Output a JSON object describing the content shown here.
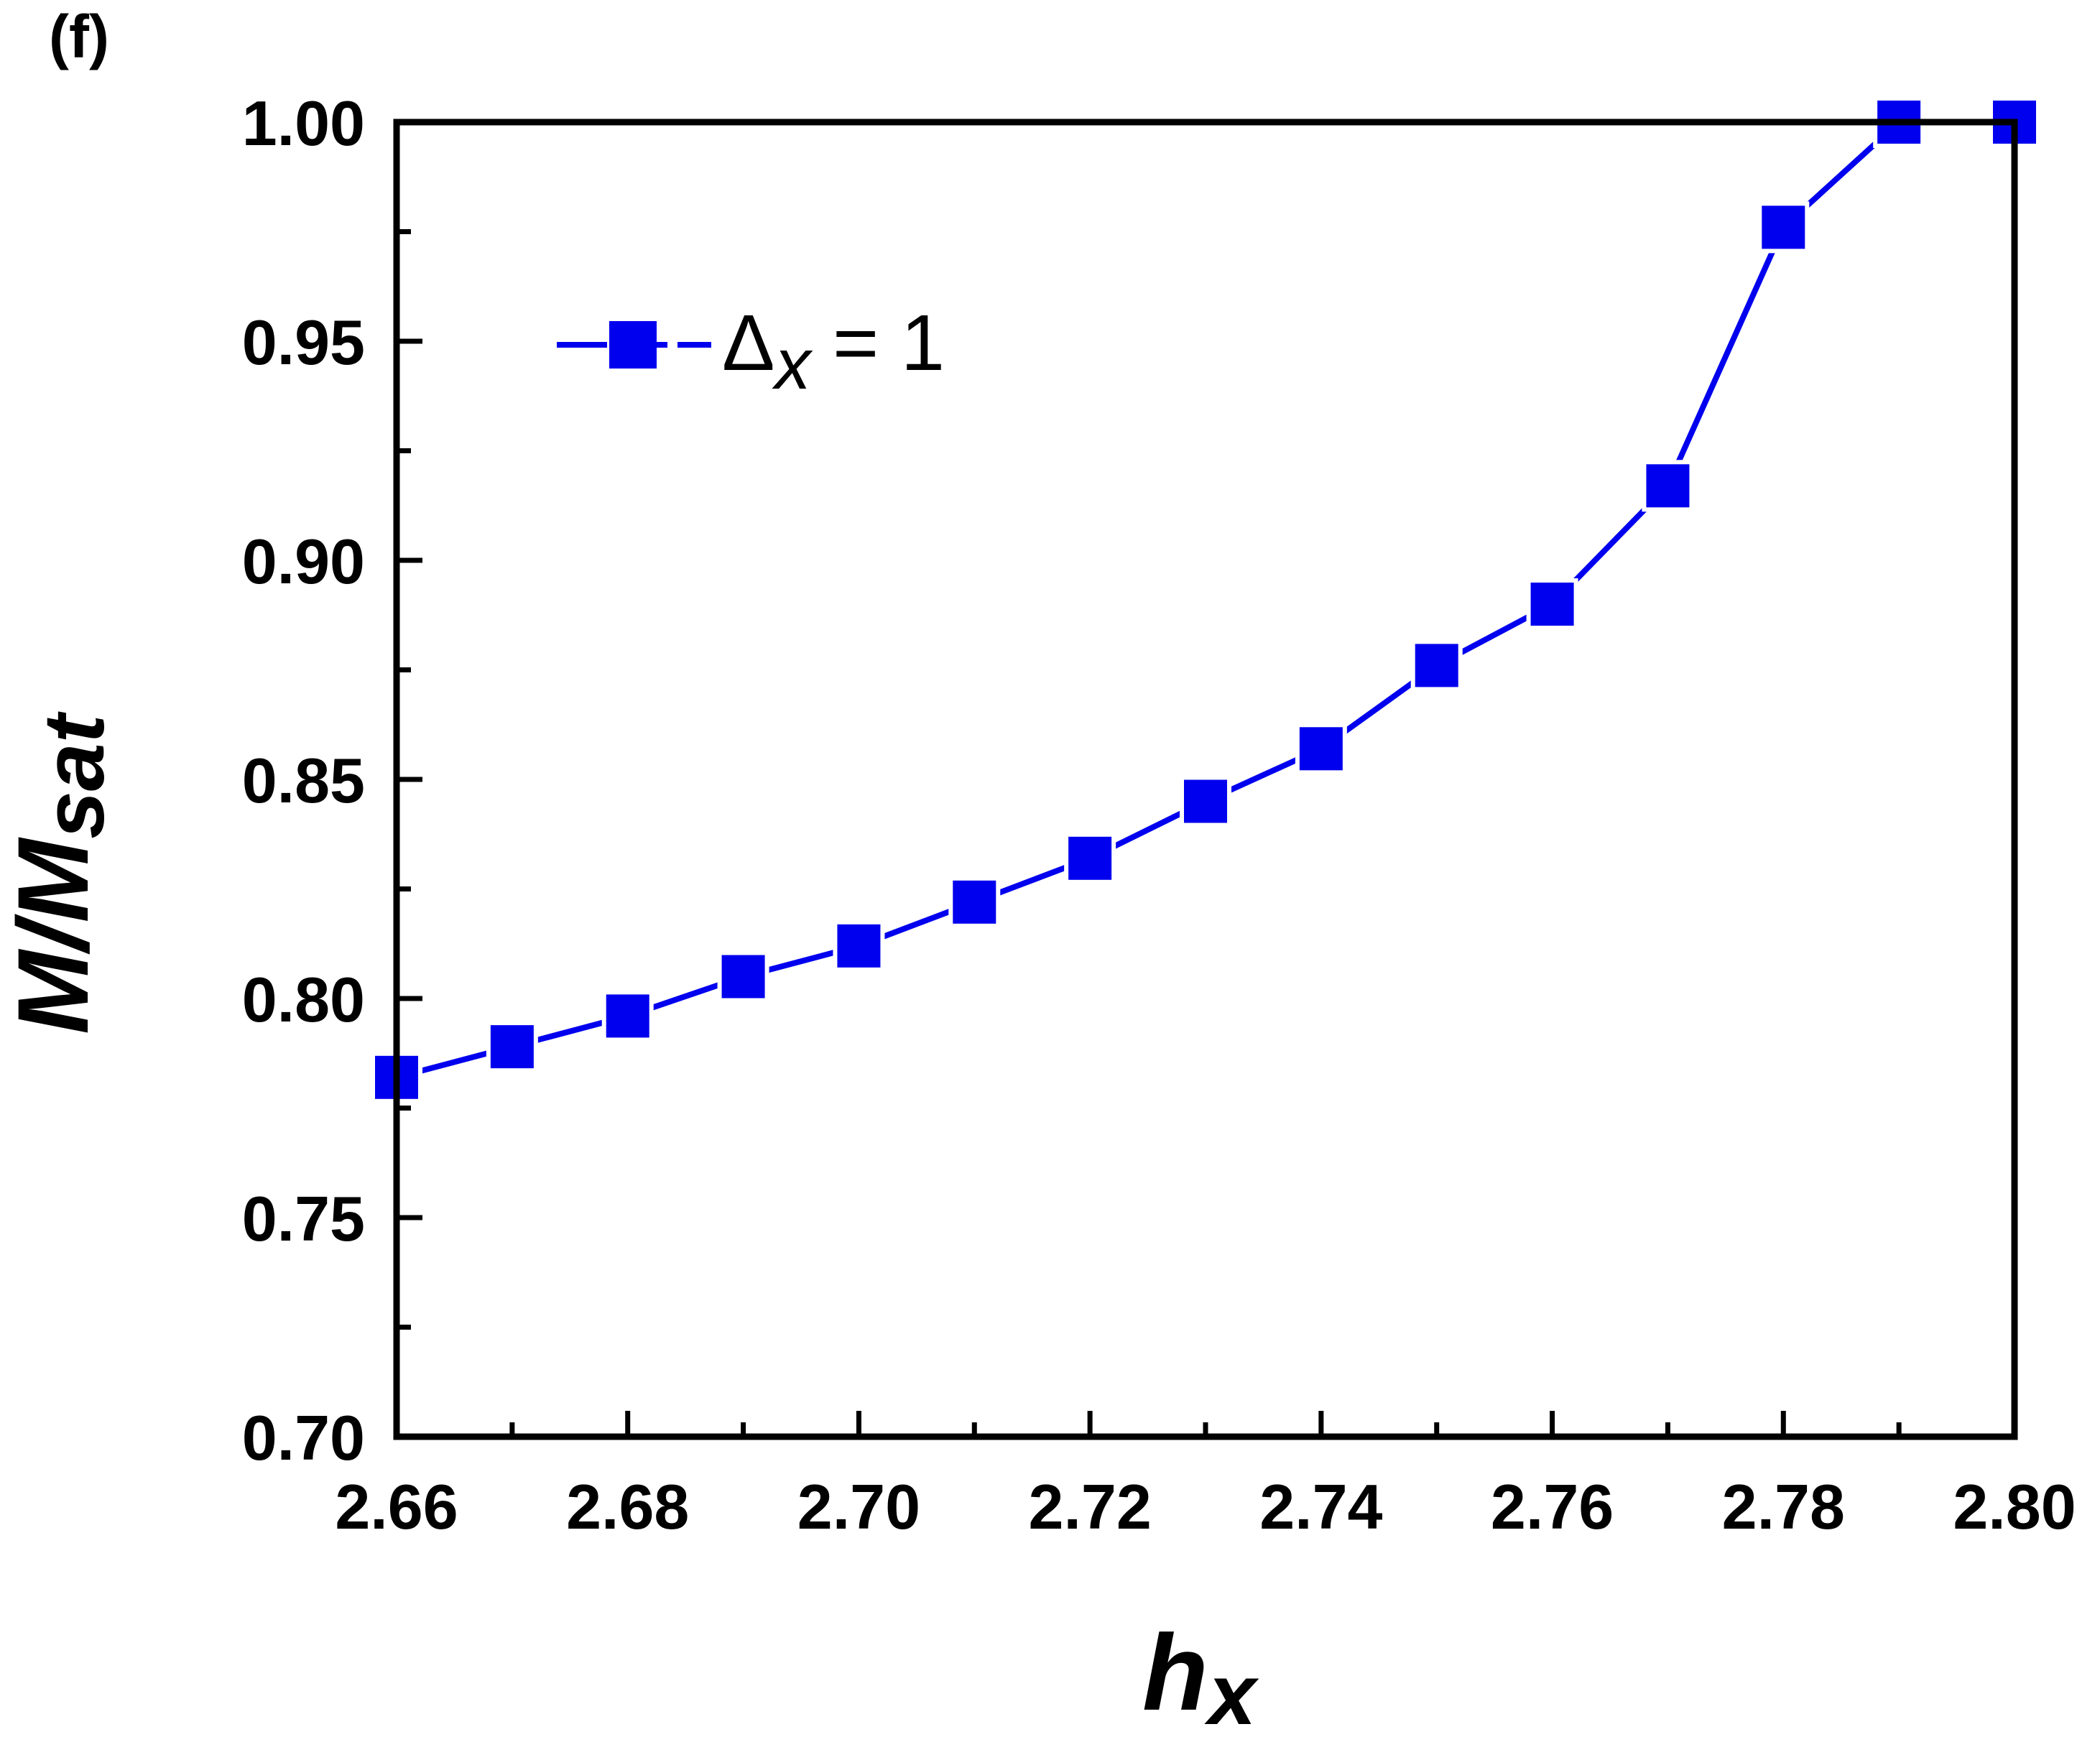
{
  "panel_label": "(f)",
  "chart_data": {
    "type": "line",
    "xlabel": {
      "main": "h",
      "sub": "x"
    },
    "ylabel": {
      "main": "M/M",
      "sub": "sat"
    },
    "xlim": [
      2.66,
      2.8
    ],
    "ylim": [
      0.7,
      1.0
    ],
    "x_ticks": [
      "2.66",
      "2.68",
      "2.70",
      "2.72",
      "2.74",
      "2.76",
      "2.78",
      "2.80"
    ],
    "y_ticks": [
      "0.70",
      "0.75",
      "0.80",
      "0.85",
      "0.90",
      "0.95",
      "1.00"
    ],
    "x_minor_step": 0.01,
    "y_minor_step": 0.025,
    "grid": false,
    "legend_position": "top-left",
    "series": [
      {
        "name": "Δx = 1",
        "legend": {
          "symbol": "Δ",
          "sub": "x",
          "rest": " = 1"
        },
        "color": "#0000ee",
        "marker": "square",
        "x": [
          2.66,
          2.67,
          2.68,
          2.69,
          2.7,
          2.71,
          2.72,
          2.73,
          2.74,
          2.75,
          2.76,
          2.77,
          2.78,
          2.79,
          2.8
        ],
        "y": [
          0.782,
          0.789,
          0.796,
          0.805,
          0.812,
          0.822,
          0.832,
          0.845,
          0.857,
          0.876,
          0.89,
          0.917,
          0.976,
          1.0,
          1.0
        ]
      }
    ]
  }
}
